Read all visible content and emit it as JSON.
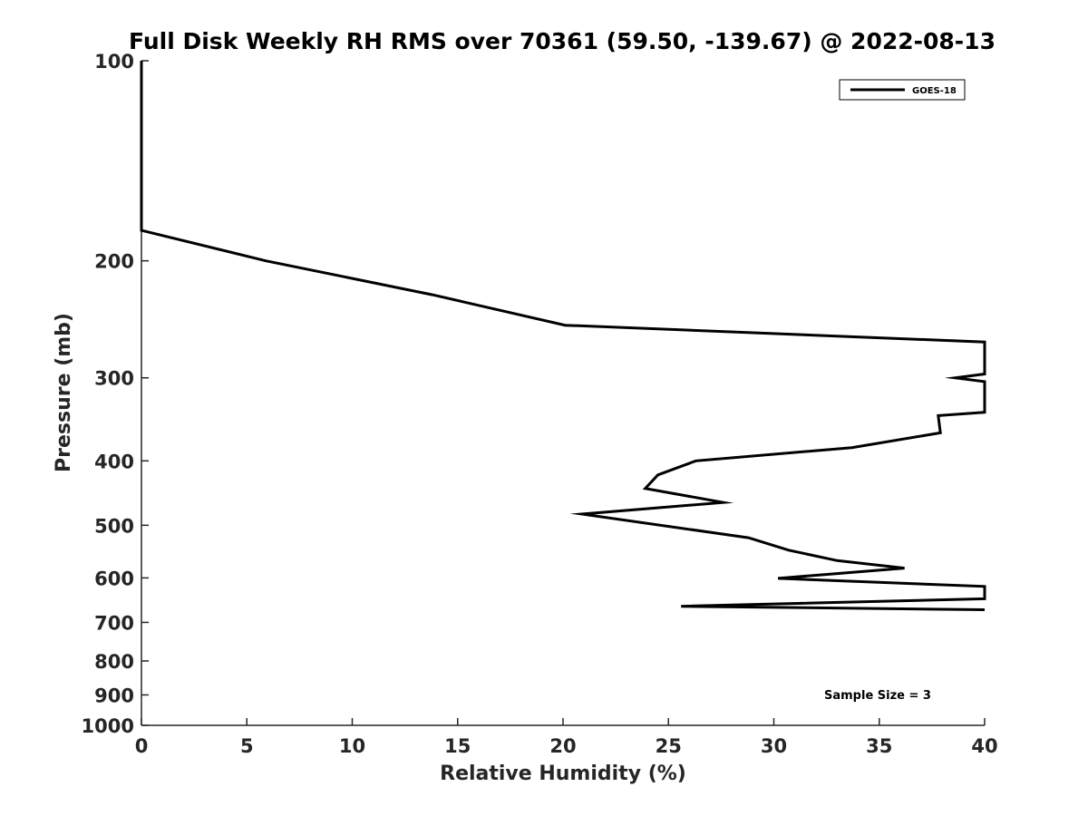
{
  "chart_data": {
    "type": "line",
    "title": "Full Disk Weekly RH RMS over 70361 (59.50, -139.67) @ 2022-08-13",
    "xlabel": "Relative Humidity (%)",
    "ylabel": "Pressure (mb)",
    "xlim": [
      0,
      40
    ],
    "ylim": [
      100,
      1000
    ],
    "y_scale": "log",
    "y_reversed": true,
    "x_ticks": [
      0,
      5,
      10,
      15,
      20,
      25,
      30,
      35,
      40
    ],
    "y_ticks": [
      100,
      200,
      300,
      400,
      500,
      600,
      700,
      800,
      900,
      1000
    ],
    "grid": false,
    "legend_position": "top-right",
    "series": [
      {
        "name": "GOES-18",
        "color": "#000000",
        "points": [
          [
            0.0,
            100
          ],
          [
            0.0,
            140
          ],
          [
            0.0,
            180
          ],
          [
            5.9,
            200
          ],
          [
            13.8,
            225
          ],
          [
            20.1,
            250
          ],
          [
            40.0,
            265
          ],
          [
            40.0,
            296
          ],
          [
            38.6,
            300
          ],
          [
            40.0,
            304
          ],
          [
            40.0,
            338
          ],
          [
            37.8,
            342
          ],
          [
            37.9,
            363
          ],
          [
            33.7,
            382
          ],
          [
            26.3,
            400
          ],
          [
            24.5,
            420
          ],
          [
            23.9,
            440
          ],
          [
            27.6,
            462
          ],
          [
            20.9,
            481
          ],
          [
            28.8,
            522
          ],
          [
            30.7,
            545
          ],
          [
            33.0,
            565
          ],
          [
            36.2,
            580
          ],
          [
            30.2,
            601
          ],
          [
            40.0,
            618
          ],
          [
            40.0,
            645
          ],
          [
            25.6,
            662
          ],
          [
            40.0,
            670
          ]
        ]
      }
    ],
    "annotations": [
      "Sample Size = 3"
    ]
  }
}
